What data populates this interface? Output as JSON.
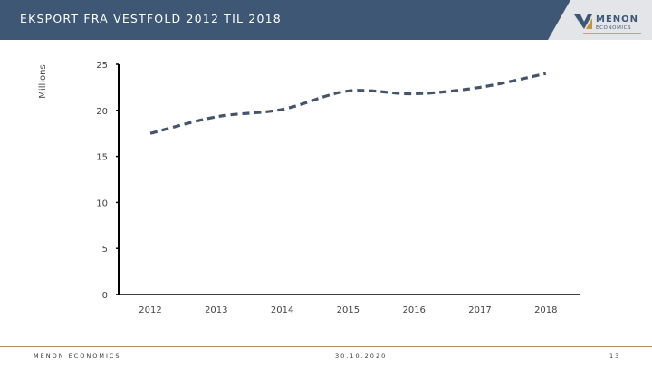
{
  "header": {
    "title": "EKSPORT FRA VESTFOLD 2012 TIL 2018",
    "logo_text": "MENON ECONOMICS"
  },
  "footer": {
    "company": "MENON ECONOMICS",
    "date": "30.10.2020",
    "page": "13"
  },
  "colors": {
    "header": "#3d5775",
    "line": "#44546a",
    "accent": "#b08e5e"
  },
  "chart_data": {
    "type": "line",
    "title": "",
    "ylabel": "Millions",
    "xlabel": "",
    "categories": [
      "2012",
      "2013",
      "2014",
      "2015",
      "2016",
      "2017",
      "2018"
    ],
    "series": [
      {
        "values": [
          17.5,
          19.3,
          20.1,
          22.1,
          21.8,
          22.5,
          24.0
        ],
        "style": "dashed"
      }
    ],
    "ylim": [
      0,
      25
    ],
    "yticks": [
      0,
      5,
      10,
      15,
      20,
      25
    ],
    "grid": false,
    "legend": "none"
  }
}
